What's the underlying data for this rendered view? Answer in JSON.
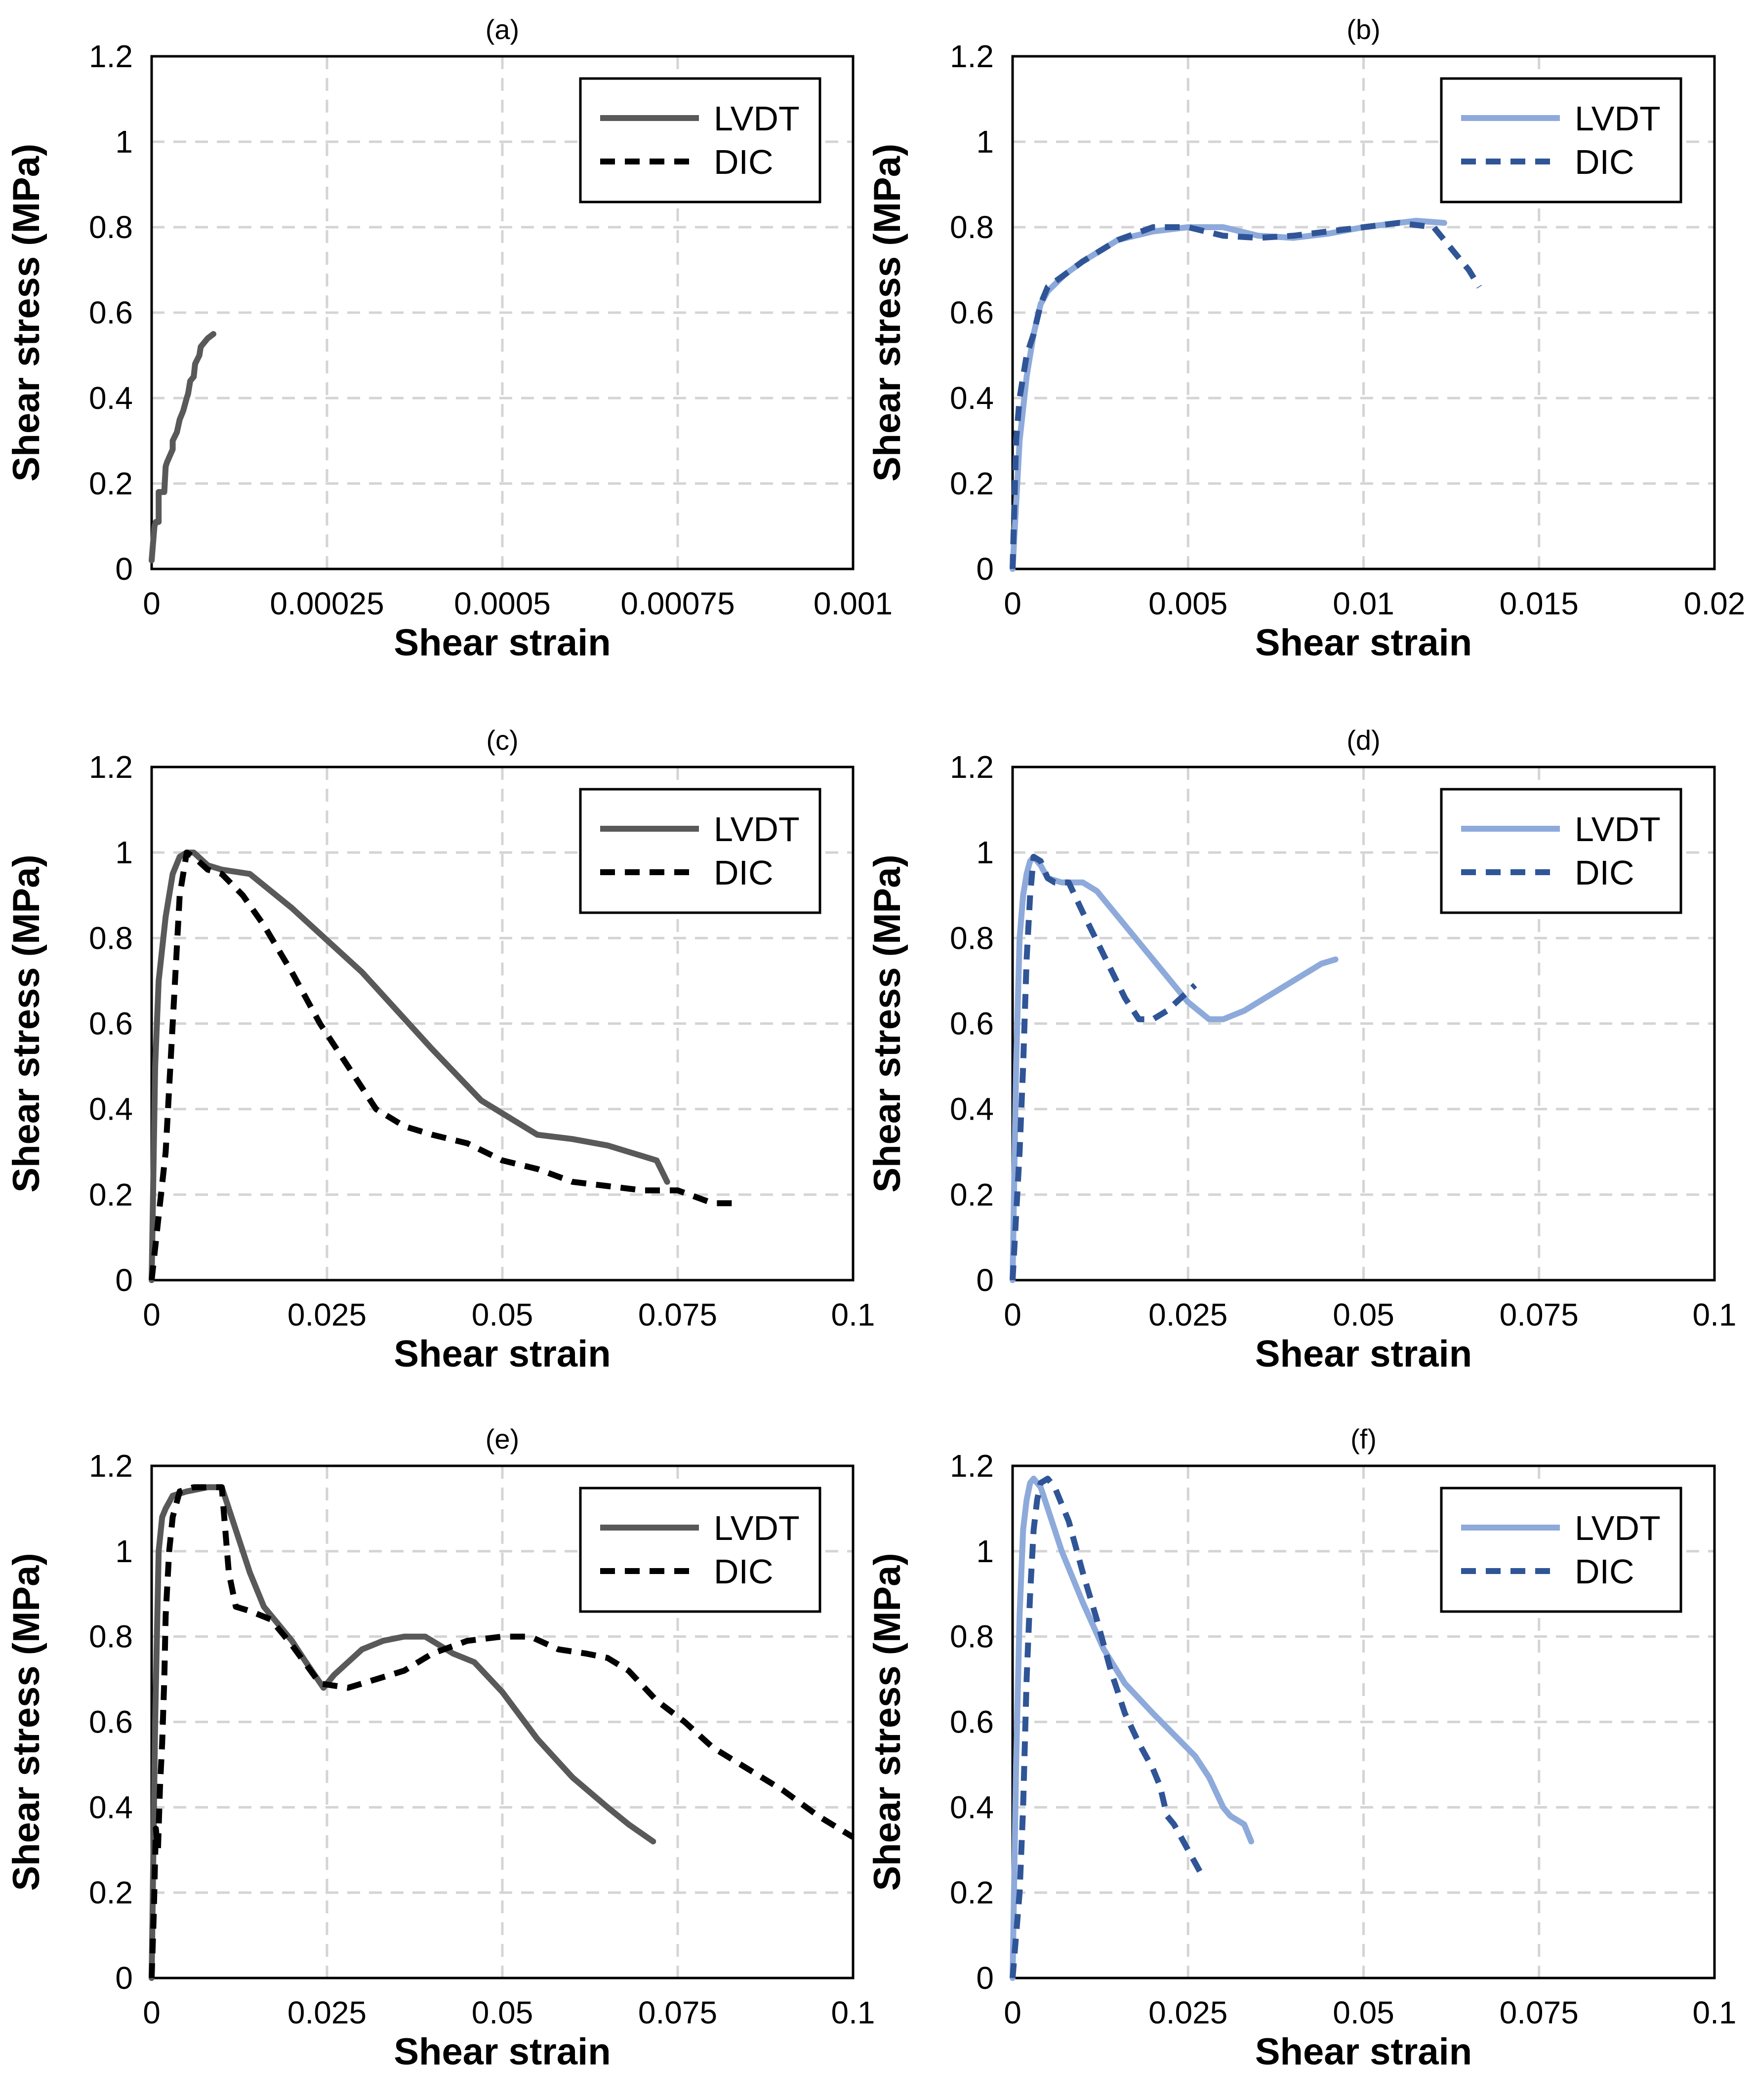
{
  "chart_data": [
    {
      "panel": "(a)",
      "type": "line",
      "title": "(a)",
      "xlabel": "Shear strain",
      "ylabel": "Shear stress (MPa)",
      "xlim": [
        0,
        0.001
      ],
      "ylim": [
        0,
        1.2
      ],
      "xticks": [
        0,
        0.00025,
        0.0005,
        0.00075,
        0.001
      ],
      "xtick_labels": [
        "0",
        "0.00025",
        "0.0005",
        "0.00075",
        "0.001"
      ],
      "yticks": [
        0,
        0.2,
        0.4,
        0.6,
        0.8,
        1,
        1.2
      ],
      "ytick_labels": [
        "0",
        "0.2",
        "0.4",
        "0.6",
        "0.8",
        "1",
        "1.2"
      ],
      "legend": [
        "LVDT",
        "DIC"
      ],
      "series": [
        {
          "name": "LVDT",
          "color": "#595959",
          "dash": "solid",
          "x": [
            0,
            2e-06,
            4e-06,
            6e-06,
            1e-05,
            1e-05,
            1.8e-05,
            2e-05,
            2.2e-05,
            3e-05,
            3e-05,
            3.6e-05,
            4e-05,
            4.5e-05,
            5e-05,
            5.2e-05,
            5.5e-05,
            6e-05,
            6.2e-05,
            6.8e-05,
            7e-05,
            7.5e-05,
            8e-05,
            8.8e-05
          ],
          "y": [
            0.02,
            0.06,
            0.1,
            0.11,
            0.11,
            0.18,
            0.18,
            0.24,
            0.25,
            0.28,
            0.3,
            0.32,
            0.35,
            0.37,
            0.4,
            0.41,
            0.44,
            0.45,
            0.48,
            0.5,
            0.52,
            0.53,
            0.54,
            0.55
          ]
        },
        {
          "name": "DIC",
          "color": "#000000",
          "dash": "dashed",
          "x": [],
          "y": []
        }
      ]
    },
    {
      "panel": "(b)",
      "type": "line",
      "title": "(b)",
      "xlabel": "Shear strain",
      "ylabel": "Shear stress (MPa)",
      "xlim": [
        0,
        0.02
      ],
      "ylim": [
        0,
        1.2
      ],
      "xticks": [
        0,
        0.005,
        0.01,
        0.015,
        0.02
      ],
      "xtick_labels": [
        "0",
        "0.005",
        "0.01",
        "0.015",
        "0.02"
      ],
      "yticks": [
        0,
        0.2,
        0.4,
        0.6,
        0.8,
        1,
        1.2
      ],
      "ytick_labels": [
        "0",
        "0.2",
        "0.4",
        "0.6",
        "0.8",
        "1",
        "1.2"
      ],
      "legend": [
        "LVDT",
        "DIC"
      ],
      "series": [
        {
          "name": "LVDT",
          "color": "#8eaadb",
          "dash": "solid",
          "x": [
            0,
            0.0001,
            0.0002,
            0.0004,
            0.0006,
            0.0008,
            0.001,
            0.0015,
            0.002,
            0.003,
            0.004,
            0.005,
            0.006,
            0.007,
            0.008,
            0.009,
            0.01,
            0.011,
            0.0115,
            0.0123
          ],
          "y": [
            0,
            0.15,
            0.3,
            0.45,
            0.55,
            0.62,
            0.65,
            0.69,
            0.72,
            0.77,
            0.79,
            0.8,
            0.8,
            0.78,
            0.775,
            0.785,
            0.8,
            0.81,
            0.815,
            0.81
          ]
        },
        {
          "name": "DIC",
          "color": "#2f5597",
          "dash": "dashed",
          "x": [
            0,
            0.0001,
            0.0002,
            0.0004,
            0.0006,
            0.0008,
            0.001,
            0.002,
            0.003,
            0.004,
            0.005,
            0.006,
            0.007,
            0.008,
            0.009,
            0.01,
            0.011,
            0.012,
            0.0125,
            0.013,
            0.0133
          ],
          "y": [
            0,
            0.3,
            0.4,
            0.5,
            0.55,
            0.62,
            0.66,
            0.72,
            0.77,
            0.8,
            0.8,
            0.78,
            0.775,
            0.78,
            0.79,
            0.8,
            0.81,
            0.8,
            0.75,
            0.7,
            0.66
          ]
        }
      ]
    },
    {
      "panel": "(c)",
      "type": "line",
      "title": "(c)",
      "xlabel": "Shear strain",
      "ylabel": "Shear stress (MPa)",
      "xlim": [
        0,
        0.1
      ],
      "ylim": [
        0,
        1.2
      ],
      "xticks": [
        0,
        0.025,
        0.05,
        0.075,
        0.1
      ],
      "xtick_labels": [
        "0",
        "0.025",
        "0.05",
        "0.075",
        "0.1"
      ],
      "yticks": [
        0,
        0.2,
        0.4,
        0.6,
        0.8,
        1,
        1.2
      ],
      "ytick_labels": [
        "0",
        "0.2",
        "0.4",
        "0.6",
        "0.8",
        "1",
        "1.2"
      ],
      "legend": [
        "LVDT",
        "DIC"
      ],
      "series": [
        {
          "name": "LVDT",
          "color": "#595959",
          "dash": "solid",
          "x": [
            0,
            0.0005,
            0.001,
            0.002,
            0.003,
            0.004,
            0.005,
            0.006,
            0.008,
            0.01,
            0.014,
            0.02,
            0.03,
            0.04,
            0.047,
            0.05,
            0.055,
            0.06,
            0.065,
            0.07,
            0.072,
            0.0735
          ],
          "y": [
            0,
            0.5,
            0.7,
            0.85,
            0.95,
            0.99,
            1.0,
            1.0,
            0.97,
            0.96,
            0.95,
            0.87,
            0.72,
            0.54,
            0.42,
            0.39,
            0.34,
            0.33,
            0.315,
            0.29,
            0.28,
            0.23
          ]
        },
        {
          "name": "DIC",
          "color": "#000000",
          "dash": "dashed",
          "x": [
            0,
            0.001,
            0.002,
            0.003,
            0.004,
            0.005,
            0.006,
            0.008,
            0.01,
            0.013,
            0.016,
            0.02,
            0.024,
            0.028,
            0.032,
            0.036,
            0.04,
            0.045,
            0.05,
            0.055,
            0.06,
            0.065,
            0.07,
            0.075,
            0.08,
            0.084
          ],
          "y": [
            0,
            0.15,
            0.3,
            0.6,
            0.9,
            1.0,
            0.99,
            0.96,
            0.95,
            0.9,
            0.83,
            0.72,
            0.6,
            0.5,
            0.4,
            0.36,
            0.34,
            0.32,
            0.28,
            0.26,
            0.23,
            0.22,
            0.21,
            0.21,
            0.18,
            0.18
          ]
        }
      ]
    },
    {
      "panel": "(d)",
      "type": "line",
      "title": "(d)",
      "xlabel": "Shear strain",
      "ylabel": "Shear stress (MPa)",
      "xlim": [
        0,
        0.1
      ],
      "ylim": [
        0,
        1.2
      ],
      "xticks": [
        0,
        0.025,
        0.05,
        0.075,
        0.1
      ],
      "xtick_labels": [
        "0",
        "0.025",
        "0.05",
        "0.075",
        "0.1"
      ],
      "yticks": [
        0,
        0.2,
        0.4,
        0.6,
        0.8,
        1,
        1.2
      ],
      "ytick_labels": [
        "0",
        "0.2",
        "0.4",
        "0.6",
        "0.8",
        "1",
        "1.2"
      ],
      "legend": [
        "LVDT",
        "DIC"
      ],
      "series": [
        {
          "name": "LVDT",
          "color": "#8eaadb",
          "dash": "solid",
          "x": [
            0,
            0.0005,
            0.001,
            0.0015,
            0.002,
            0.0025,
            0.003,
            0.004,
            0.005,
            0.007,
            0.01,
            0.012,
            0.015,
            0.02,
            0.025,
            0.028,
            0.03,
            0.033,
            0.036,
            0.04,
            0.044,
            0.046
          ],
          "y": [
            0,
            0.5,
            0.8,
            0.9,
            0.95,
            0.98,
            0.99,
            0.97,
            0.94,
            0.93,
            0.93,
            0.91,
            0.85,
            0.75,
            0.65,
            0.61,
            0.61,
            0.63,
            0.66,
            0.7,
            0.74,
            0.75
          ]
        },
        {
          "name": "DIC",
          "color": "#2f5597",
          "dash": "dashed",
          "x": [
            0,
            0.0005,
            0.001,
            0.0015,
            0.002,
            0.0025,
            0.003,
            0.004,
            0.005,
            0.006,
            0.008,
            0.01,
            0.013,
            0.016,
            0.018,
            0.02,
            0.022,
            0.024,
            0.026
          ],
          "y": [
            0,
            0.15,
            0.3,
            0.5,
            0.75,
            0.9,
            0.99,
            0.98,
            0.94,
            0.93,
            0.93,
            0.86,
            0.76,
            0.66,
            0.61,
            0.61,
            0.63,
            0.66,
            0.69
          ]
        }
      ]
    },
    {
      "panel": "(e)",
      "type": "line",
      "title": "(e)",
      "xlabel": "Shear strain",
      "ylabel": "Shear stress (MPa)",
      "xlim": [
        0,
        0.1
      ],
      "ylim": [
        0,
        1.2
      ],
      "xticks": [
        0,
        0.025,
        0.05,
        0.075,
        0.1
      ],
      "xtick_labels": [
        "0",
        "0.025",
        "0.05",
        "0.075",
        "0.1"
      ],
      "yticks": [
        0,
        0.2,
        0.4,
        0.6,
        0.8,
        1,
        1.2
      ],
      "ytick_labels": [
        "0",
        "0.2",
        "0.4",
        "0.6",
        "0.8",
        "1",
        "1.2"
      ],
      "legend": [
        "LVDT",
        "DIC"
      ],
      "series": [
        {
          "name": "LVDT",
          "color": "#595959",
          "dash": "solid",
          "x": [
            0,
            0.0005,
            0.001,
            0.0015,
            0.002,
            0.003,
            0.005,
            0.008,
            0.01,
            0.012,
            0.014,
            0.016,
            0.018,
            0.02,
            0.022,
            0.0245,
            0.026,
            0.028,
            0.03,
            0.033,
            0.036,
            0.039,
            0.041,
            0.043,
            0.046,
            0.05,
            0.055,
            0.06,
            0.065,
            0.068,
            0.0715
          ],
          "y": [
            0,
            0.6,
            1.0,
            1.08,
            1.1,
            1.13,
            1.14,
            1.15,
            1.15,
            1.05,
            0.95,
            0.87,
            0.83,
            0.79,
            0.74,
            0.68,
            0.71,
            0.74,
            0.77,
            0.79,
            0.8,
            0.8,
            0.78,
            0.76,
            0.74,
            0.67,
            0.56,
            0.47,
            0.4,
            0.36,
            0.32
          ]
        },
        {
          "name": "DIC",
          "color": "#000000",
          "dash": "dashed",
          "x": [
            0,
            0.0003,
            0.0006,
            0.0009,
            0.0012,
            0.0015,
            0.0018,
            0.002,
            0.0025,
            0.003,
            0.004,
            0.006,
            0.008,
            0.01,
            0.011,
            0.012,
            0.014,
            0.017,
            0.02,
            0.024,
            0.028,
            0.032,
            0.036,
            0.04,
            0.045,
            0.05,
            0.054,
            0.058,
            0.062,
            0.065,
            0.068,
            0.072,
            0.076,
            0.08,
            0.085,
            0.09,
            0.095,
            0.1
          ],
          "y": [
            0,
            0.15,
            0.35,
            0.3,
            0.45,
            0.55,
            0.7,
            0.85,
            1.0,
            1.08,
            1.14,
            1.15,
            1.15,
            1.15,
            0.95,
            0.87,
            0.86,
            0.84,
            0.78,
            0.69,
            0.68,
            0.7,
            0.72,
            0.76,
            0.79,
            0.8,
            0.8,
            0.77,
            0.76,
            0.75,
            0.72,
            0.65,
            0.6,
            0.54,
            0.49,
            0.44,
            0.38,
            0.33
          ]
        }
      ]
    },
    {
      "panel": "(f)",
      "type": "line",
      "title": "(f)",
      "xlabel": "Shear strain",
      "ylabel": "Shear stress (MPa)",
      "xlim": [
        0,
        0.1
      ],
      "ylim": [
        0,
        1.2
      ],
      "xticks": [
        0,
        0.025,
        0.05,
        0.075,
        0.1
      ],
      "xtick_labels": [
        "0",
        "0.025",
        "0.05",
        "0.075",
        "0.1"
      ],
      "yticks": [
        0,
        0.2,
        0.4,
        0.6,
        0.8,
        1,
        1.2
      ],
      "ytick_labels": [
        "0",
        "0.2",
        "0.4",
        "0.6",
        "0.8",
        "1",
        "1.2"
      ],
      "legend": [
        "LVDT",
        "DIC"
      ],
      "series": [
        {
          "name": "LVDT",
          "color": "#8eaadb",
          "dash": "solid",
          "x": [
            0,
            0.0005,
            0.001,
            0.0015,
            0.002,
            0.0025,
            0.003,
            0.004,
            0.005,
            0.007,
            0.01,
            0.013,
            0.016,
            0.02,
            0.023,
            0.026,
            0.028,
            0.03,
            0.031,
            0.033,
            0.034
          ],
          "y": [
            0,
            0.5,
            0.85,
            1.05,
            1.12,
            1.16,
            1.17,
            1.15,
            1.1,
            1.0,
            0.88,
            0.77,
            0.69,
            0.62,
            0.57,
            0.52,
            0.47,
            0.4,
            0.38,
            0.36,
            0.32
          ]
        },
        {
          "name": "DIC",
          "color": "#2f5597",
          "dash": "dashed",
          "x": [
            0,
            0.0005,
            0.001,
            0.0015,
            0.002,
            0.0025,
            0.003,
            0.0035,
            0.004,
            0.005,
            0.006,
            0.008,
            0.01,
            0.012,
            0.014,
            0.016,
            0.018,
            0.02,
            0.021,
            0.022,
            0.023,
            0.024,
            0.026,
            0.027
          ],
          "y": [
            0,
            0.1,
            0.2,
            0.4,
            0.7,
            0.9,
            1.05,
            1.12,
            1.16,
            1.17,
            1.15,
            1.07,
            0.95,
            0.84,
            0.72,
            0.62,
            0.55,
            0.49,
            0.45,
            0.38,
            0.36,
            0.33,
            0.27,
            0.24
          ]
        }
      ]
    }
  ]
}
